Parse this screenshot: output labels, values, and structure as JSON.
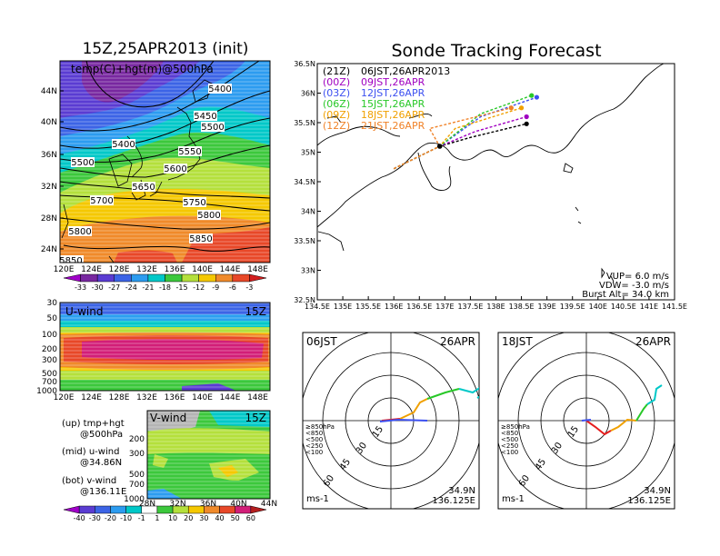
{
  "left": {
    "title": "15Z,25APR2013 (init)",
    "map_label": "temp(C)+hgt(m)@500hPa",
    "lat_ticks": [
      "44N",
      "40N",
      "36N",
      "32N",
      "28N",
      "24N"
    ],
    "lon_ticks": [
      "120E",
      "124E",
      "128E",
      "132E",
      "136E",
      "140E",
      "144E",
      "148E"
    ],
    "contours": [
      "5400",
      "5450",
      "5500",
      "5400",
      "5550",
      "5500",
      "5600",
      "5650",
      "5700",
      "5750",
      "5800",
      "5800",
      "5850",
      "5850"
    ],
    "temp_colorbar": [
      "-33",
      "-30",
      "-27",
      "-24",
      "-21",
      "-18",
      "-15",
      "-12",
      "-9",
      "-6",
      "-3"
    ],
    "uwind": {
      "label": "U-wind",
      "time": "15Z",
      "p_ticks": [
        "30",
        "50",
        "100",
        "200",
        "300",
        "500",
        "700",
        "1000"
      ]
    },
    "vwind": {
      "label": "V-wind",
      "time": "15Z",
      "p_ticks": [
        "200",
        "300",
        "500",
        "700",
        "1000"
      ],
      "lat_ticks": [
        "28N",
        "32N",
        "36N",
        "40N",
        "44N"
      ]
    },
    "notes": [
      {
        "a": "(up) tmp+hgt",
        "b": "@500hPa"
      },
      {
        "a": "(mid) u-wind",
        "b": "@34.86N"
      },
      {
        "a": "(bot) v-wind",
        "b": "@136.11E"
      }
    ],
    "wind_colorbar": [
      "-40",
      "-30",
      "-20",
      "-10",
      "-1",
      "1",
      "10",
      "20",
      "30",
      "40",
      "50",
      "60"
    ]
  },
  "right": {
    "title": "Sonde Tracking Forecast",
    "legend": [
      {
        "id": "(21Z)",
        "time": "06JST,26APR2013",
        "color": "#000000"
      },
      {
        "id": "(00Z)",
        "time": "09JST,26APR",
        "color": "#a000c0"
      },
      {
        "id": "(03Z)",
        "time": "12JST,26APR",
        "color": "#3c50f0"
      },
      {
        "id": "(06Z)",
        "time": "15JST,26APR",
        "color": "#28c828"
      },
      {
        "id": "(09Z)",
        "time": "18JST,26APR",
        "color": "#f0a000"
      },
      {
        "id": "(12Z)",
        "time": "21JST,26APR",
        "color": "#f08228"
      }
    ],
    "lat_ticks": [
      "36.5N",
      "36N",
      "35.5N",
      "35N",
      "34.5N",
      "34N",
      "33.5N",
      "33N",
      "32.5N"
    ],
    "lon_ticks": [
      "134.5E",
      "135E",
      "135.5E",
      "136E",
      "136.5E",
      "137E",
      "137.5E",
      "138E",
      "138.5E",
      "139E",
      "139.5E",
      "140E",
      "140.5E",
      "141E",
      "141.5E"
    ],
    "params": {
      "vup": "VUP= 6.0 m/s",
      "vdw": "VDW= -3.0 m/s",
      "burst": "Burst Alt= 34.0 km"
    }
  },
  "hodographs": [
    {
      "time": "06JST",
      "date": "26APR"
    },
    {
      "time": "18JST",
      "date": "26APR"
    }
  ],
  "hodo_common": {
    "rings": [
      "15",
      "30",
      "45",
      "60"
    ],
    "levels": [
      "≥850hPa",
      "<850",
      "<500",
      "<250",
      "<100"
    ],
    "unit": "ms-1",
    "loc1": "34.9N",
    "loc2": "136.125E"
  },
  "chart_data": {
    "type": "line",
    "title": "Sonde Tracking Forecast",
    "x_label": "",
    "y_label": "",
    "xlim": [
      134.5,
      141.5
    ],
    "ylim": [
      32.5,
      36.5
    ],
    "launch": {
      "lon": 136.9,
      "lat": 35.1
    },
    "series": [
      {
        "name": "(21Z) 06JST,26APR2013",
        "points": [
          [
            136.0,
            34.72
          ],
          [
            136.9,
            35.1
          ],
          [
            137.5,
            35.25
          ],
          [
            138.6,
            35.48
          ]
        ]
      },
      {
        "name": "(00Z) 09JST,26APR",
        "points": [
          [
            136.0,
            34.72
          ],
          [
            136.9,
            35.1
          ],
          [
            137.6,
            35.35
          ],
          [
            138.6,
            35.6
          ]
        ]
      },
      {
        "name": "(03Z) 12JST,26APR",
        "points": [
          [
            136.0,
            34.72
          ],
          [
            136.9,
            35.1
          ],
          [
            137.7,
            35.6
          ],
          [
            138.8,
            35.93
          ]
        ]
      },
      {
        "name": "(06Z) 15JST,26APR",
        "points": [
          [
            136.0,
            34.72
          ],
          [
            136.9,
            35.1
          ],
          [
            137.7,
            35.65
          ],
          [
            138.7,
            35.96
          ]
        ]
      },
      {
        "name": "(09Z) 18JST,26APR",
        "points": [
          [
            136.0,
            34.72
          ],
          [
            136.9,
            35.1
          ],
          [
            137.2,
            35.4
          ],
          [
            138.5,
            35.75
          ]
        ]
      },
      {
        "name": "(12Z) 21JST,26APR",
        "points": [
          [
            136.0,
            34.72
          ],
          [
            136.9,
            35.1
          ],
          [
            136.7,
            35.4
          ],
          [
            138.3,
            35.75
          ]
        ]
      }
    ]
  }
}
